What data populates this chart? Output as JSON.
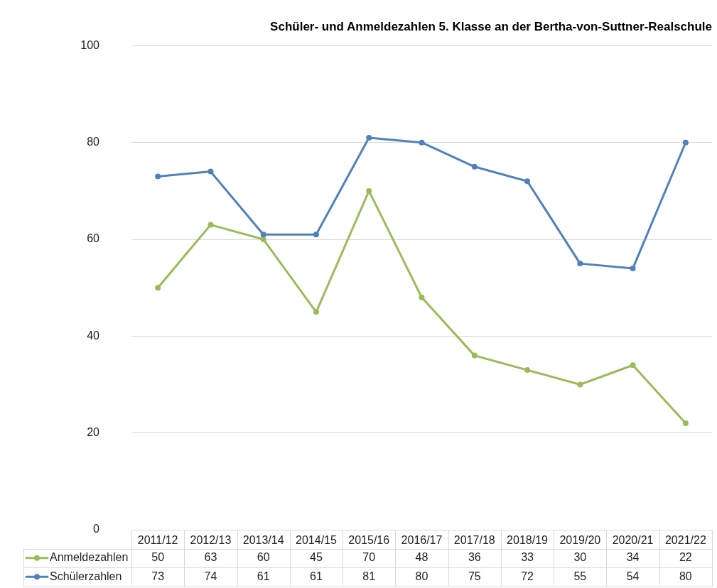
{
  "chart_data": {
    "type": "line",
    "title": "Schüler- und Anmeldezahlen 5. Klasse an der Bertha-von-Suttner-Realschule",
    "categories": [
      "2011/12",
      "2012/13",
      "2013/14",
      "2014/15",
      "2015/16",
      "2016/17",
      "2017/18",
      "2018/19",
      "2019/20",
      "2020/21",
      "2021/22"
    ],
    "series": [
      {
        "name": "Anmeldezahlen",
        "color": "#9bbb59",
        "values": [
          50,
          63,
          60,
          45,
          70,
          48,
          36,
          33,
          30,
          34,
          22
        ]
      },
      {
        "name": "Schülerzahlen",
        "color": "#4f81bd",
        "values": [
          73,
          74,
          61,
          61,
          81,
          80,
          75,
          72,
          55,
          54,
          80
        ]
      }
    ],
    "ylim": [
      0,
      100
    ],
    "yticks": [
      0,
      20,
      40,
      60,
      80,
      100
    ],
    "grid": "y",
    "legend": "bottom",
    "marker": "circle",
    "line_style": "solid",
    "data_labels": true
  }
}
